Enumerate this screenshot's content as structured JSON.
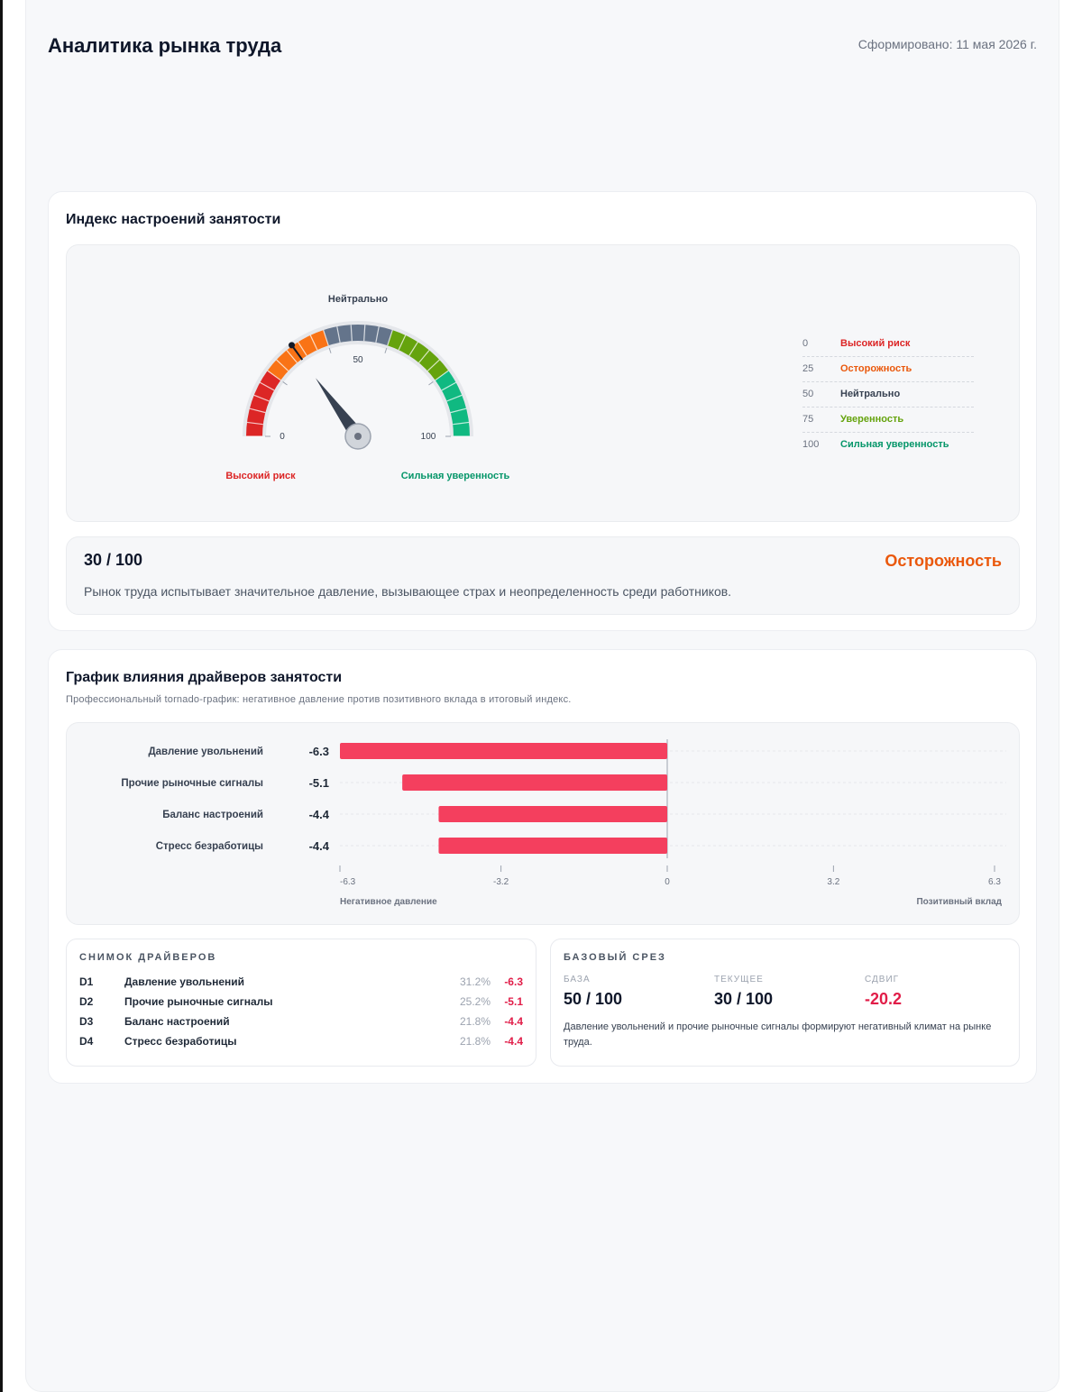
{
  "header": {
    "title": "Аналитика рынка труда",
    "generated": "Сформировано: 11 мая 2026 г."
  },
  "sentiment": {
    "title": "Индекс настроений занятости",
    "gauge": {
      "value": 30,
      "min": 0,
      "max": 100,
      "top_label": "Нейтрально",
      "tick_0": "0",
      "tick_50": "50",
      "tick_100": "100",
      "left_caption": "Высокий риск",
      "right_caption": "Сильная уверенность",
      "colors": [
        "#dc2626",
        "#f97316",
        "#64748b",
        "#65a30d",
        "#10b981"
      ]
    },
    "legend": [
      {
        "value": "0",
        "label": "Высокий риск",
        "color": "#dc2626"
      },
      {
        "value": "25",
        "label": "Осторожность",
        "color": "#ea580c"
      },
      {
        "value": "50",
        "label": "Нейтрально",
        "color": "#374151"
      },
      {
        "value": "75",
        "label": "Уверенность",
        "color": "#65a30d"
      },
      {
        "value": "100",
        "label": "Сильная уверенность",
        "color": "#059669"
      }
    ],
    "summary": {
      "score": "30 / 100",
      "status": "Осторожность",
      "description": "Рынок труда испытывает значительное давление, вызывающее страх и неопределенность среди работников."
    }
  },
  "drivers": {
    "title": "График влияния драйверов занятости",
    "description": "Профессиональный tornado-график: негативное давление против позитивного вклада в итоговый индекс."
  },
  "chart_data": {
    "type": "bar",
    "orientation": "horizontal",
    "categories": [
      "Давление увольнений",
      "Прочие рыночные сигналы",
      "Баланс настроений",
      "Стресс безработицы"
    ],
    "values": [
      -6.3,
      -5.1,
      -4.4,
      -4.4
    ],
    "value_labels": [
      "-6.3",
      "-5.1",
      "-4.4",
      "-4.4"
    ],
    "xlim": [
      -6.3,
      6.3
    ],
    "xticks": [
      "-6.3",
      "-3.2",
      "0",
      "3.2",
      "6.3"
    ],
    "xtick_values": [
      -6.3,
      -3.2,
      0,
      3.2,
      6.3
    ],
    "left_axis_label": "Негативное давление",
    "right_axis_label": "Позитивный вклад",
    "bar_color": "#f43f5e",
    "grid": true
  },
  "snapshot": {
    "title": "СНИМОК ДРАЙВЕРОВ",
    "rows": [
      {
        "id": "D1",
        "name": "Давление увольнений",
        "pct": "31.2%",
        "value": "-6.3"
      },
      {
        "id": "D2",
        "name": "Прочие рыночные сигналы",
        "pct": "25.2%",
        "value": "-5.1"
      },
      {
        "id": "D3",
        "name": "Баланс настроений",
        "pct": "21.8%",
        "value": "-4.4"
      },
      {
        "id": "D4",
        "name": "Стресс безработицы",
        "pct": "21.8%",
        "value": "-4.4"
      }
    ]
  },
  "baseline": {
    "title": "БАЗОВЫЙ СРЕЗ",
    "base_label": "БАЗА",
    "base_value": "50 / 100",
    "current_label": "ТЕКУЩЕЕ",
    "current_value": "30 / 100",
    "shift_label": "СДВИГ",
    "shift_value": "-20.2",
    "note": "Давление увольнений и прочие рыночные сигналы формируют негативный климат на рынке труда."
  }
}
